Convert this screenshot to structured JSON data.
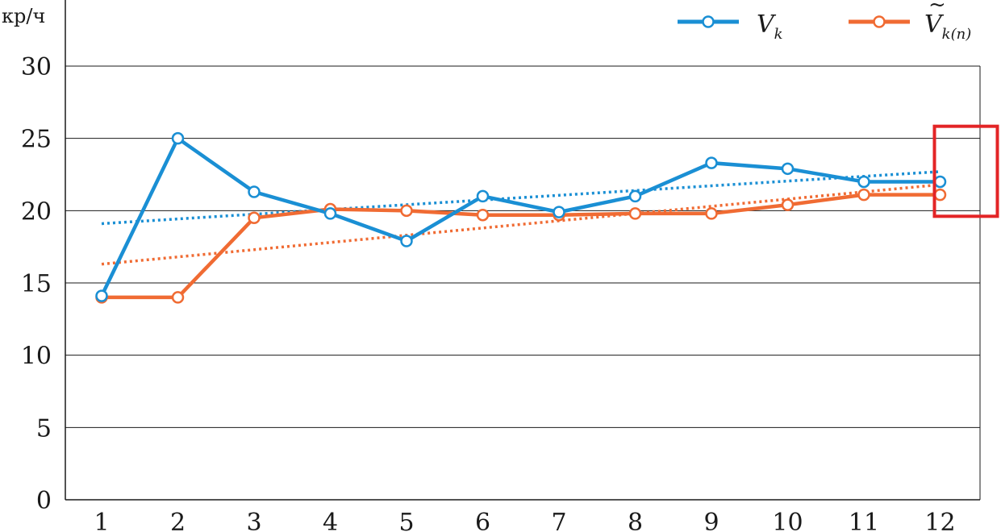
{
  "chart_data": {
    "type": "line",
    "ylabel": "кр/ч",
    "x": [
      "1",
      "2",
      "3",
      "4",
      "5",
      "6",
      "7",
      "8",
      "9",
      "10",
      "11",
      "12"
    ],
    "ylim": [
      0,
      30
    ],
    "yticks": [
      "0",
      "5",
      "10",
      "15",
      "20",
      "25",
      "30"
    ],
    "grid": true,
    "legend_position": "top-right",
    "series": [
      {
        "legend_main": "V",
        "legend_sub": "k",
        "legend_tilde": "",
        "color": "#1a8fd4",
        "values": [
          14.1,
          25.0,
          21.3,
          19.8,
          17.9,
          21.0,
          19.9,
          21.0,
          23.3,
          22.9,
          22.0,
          22.0
        ],
        "trend": [
          19.1,
          22.7
        ]
      },
      {
        "legend_main": "V",
        "legend_sub": "k(n)",
        "legend_tilde": "~",
        "color": "#f06b33",
        "values": [
          14.0,
          14.0,
          19.5,
          20.1,
          20.0,
          19.7,
          19.7,
          19.8,
          19.8,
          20.4,
          21.1,
          21.1
        ],
        "trend": [
          16.3,
          21.8
        ]
      }
    ],
    "highlight": {
      "x_range": [
        "12",
        "12"
      ],
      "y_range": [
        20,
        25
      ],
      "color": "#e32426"
    }
  }
}
